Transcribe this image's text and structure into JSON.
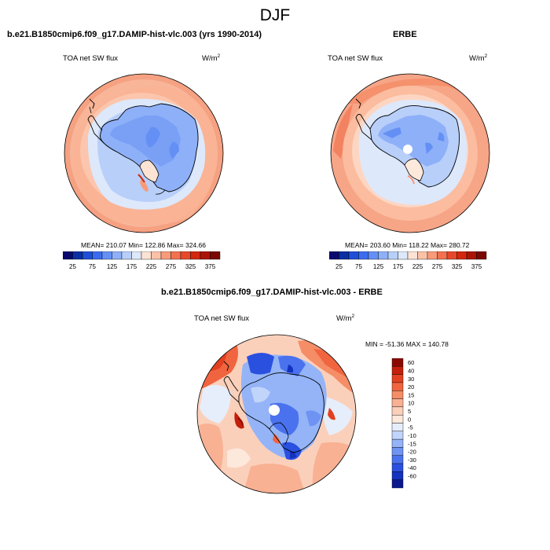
{
  "page": {
    "season": "DJF"
  },
  "panels": [
    {
      "title": "b.e21.B1850cmip6.f09_g17.DAMIP-hist-vlc.003 (yrs 1990-2014)",
      "variable": "TOA net SW flux",
      "units_base": "W/m",
      "units_exp": "2",
      "stats": "MEAN= 210.07  Min= 122.86  Max= 324.66"
    },
    {
      "title": "ERBE",
      "variable": "TOA net SW flux",
      "units_base": "W/m",
      "units_exp": "2",
      "stats": "MEAN= 203.60  Min= 118.22  Max= 280.72"
    },
    {
      "title": "b.e21.B1850cmip6.f09_g17.DAMIP-hist-vlc.003 - ERBE",
      "variable": "TOA net SW flux",
      "units_base": "W/m",
      "units_exp": "2",
      "stats": "MIN = -51.36 MAX = 140.78"
    }
  ],
  "colorbar_main": {
    "labels": [
      "25",
      "75",
      "125",
      "175",
      "225",
      "275",
      "325",
      "375"
    ],
    "colors": [
      "#08086e",
      "#0b2ea3",
      "#1f4fd6",
      "#3b6cf0",
      "#6490f5",
      "#8eb0f8",
      "#b8cffa",
      "#dde8fb",
      "#fde3d4",
      "#fbc2a8",
      "#f79b7b",
      "#f2714f",
      "#e8482a",
      "#d2280e",
      "#aa1406",
      "#7a0702"
    ]
  },
  "colorbar_diff": {
    "labels": [
      "60",
      "40",
      "30",
      "20",
      "15",
      "10",
      "5",
      "0",
      "-5",
      "-10",
      "-15",
      "-20",
      "-30",
      "-40",
      "-60"
    ],
    "colors": [
      "#8a0a02",
      "#c41f0a",
      "#e3401f",
      "#f0653f",
      "#f58d67",
      "#f9b193",
      "#fbd0bb",
      "#fde8dc",
      "#e6eefc",
      "#c1d4fa",
      "#94b4f7",
      "#6e93f3",
      "#4a72ee",
      "#2a50e0",
      "#1432c0",
      "#0a1a8e"
    ]
  }
}
